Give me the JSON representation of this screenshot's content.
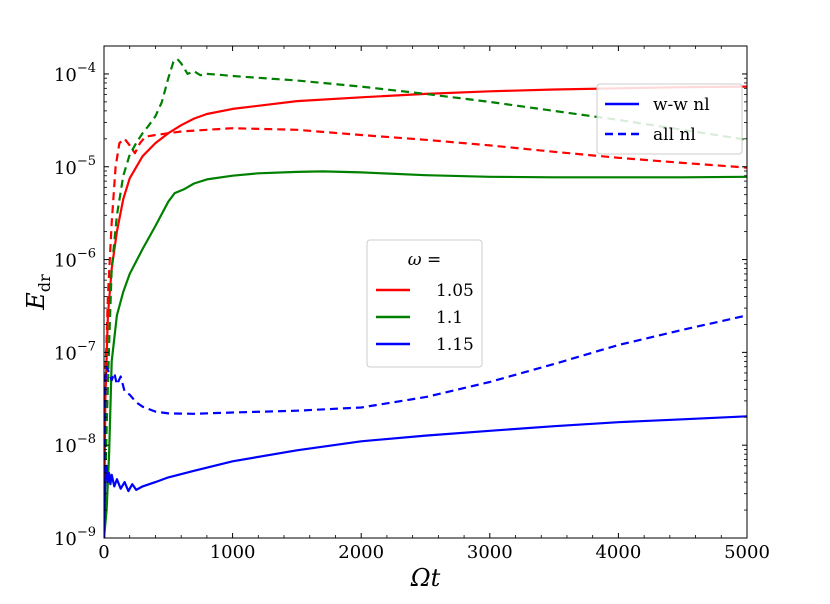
{
  "chart_data": {
    "type": "line",
    "title": "",
    "xlabel": "Ωt",
    "ylabel": "E_dr",
    "ylabel_main": "E",
    "ylabel_sub": "dr",
    "xlim": [
      0,
      5000
    ],
    "ylim": [
      1e-09,
      0.0002
    ],
    "yscale": "log",
    "grid": false,
    "x_ticks": [
      0,
      1000,
      2000,
      3000,
      4000,
      5000
    ],
    "x_tick_labels": [
      "0",
      "1000",
      "2000",
      "3000",
      "4000",
      "5000"
    ],
    "y_ticks": [
      1e-09,
      1e-08,
      1e-07,
      1e-06,
      1e-05,
      0.0001
    ],
    "y_tick_labels": [
      {
        "base": "10",
        "exp": "−9"
      },
      {
        "base": "10",
        "exp": "−8"
      },
      {
        "base": "10",
        "exp": "−7"
      },
      {
        "base": "10",
        "exp": "−6"
      },
      {
        "base": "10",
        "exp": "−5"
      },
      {
        "base": "10",
        "exp": "−4"
      }
    ],
    "legend_omega": {
      "placement": "center",
      "title": "ω =",
      "entries": [
        {
          "label": "1.05",
          "color": "#ff0000"
        },
        {
          "label": "1.1",
          "color": "#008000"
        },
        {
          "label": "1.15",
          "color": "#0000ff"
        }
      ]
    },
    "legend_style": {
      "placement": "top-right",
      "entries": [
        {
          "label": "w-w nl",
          "style": "solid",
          "color": "#0000ff"
        },
        {
          "label": "all nl",
          "style": "dashed",
          "color": "#0000ff"
        }
      ]
    },
    "series": [
      {
        "omega": "1.05",
        "style": "solid",
        "color": "#ff0000",
        "points": [
          [
            0,
            1e-09
          ],
          [
            10,
            3e-08
          ],
          [
            30,
            2.5e-07
          ],
          [
            60,
            8e-07
          ],
          [
            100,
            2e-06
          ],
          [
            150,
            4.5e-06
          ],
          [
            200,
            7.5e-06
          ],
          [
            300,
            1.3e-05
          ],
          [
            400,
            1.8e-05
          ],
          [
            500,
            2.3e-05
          ],
          [
            600,
            2.8e-05
          ],
          [
            700,
            3.3e-05
          ],
          [
            800,
            3.7e-05
          ],
          [
            1000,
            4.2e-05
          ],
          [
            1500,
            5.1e-05
          ],
          [
            2000,
            5.6e-05
          ],
          [
            2500,
            6.1e-05
          ],
          [
            3000,
            6.5e-05
          ],
          [
            3500,
            6.8e-05
          ],
          [
            4000,
            7e-05
          ],
          [
            4500,
            7.2e-05
          ],
          [
            5000,
            7.3e-05
          ]
        ]
      },
      {
        "omega": "1.05",
        "style": "dashed",
        "color": "#ff0000",
        "points": [
          [
            0,
            1e-09
          ],
          [
            10,
            5e-08
          ],
          [
            30,
            4e-07
          ],
          [
            60,
            2.5e-06
          ],
          [
            90,
            1e-05
          ],
          [
            120,
            1.8e-05
          ],
          [
            160,
            2e-05
          ],
          [
            200,
            1.7e-05
          ],
          [
            240,
            1.4e-05
          ],
          [
            280,
            1.8e-05
          ],
          [
            320,
            2.1e-05
          ],
          [
            400,
            2.2e-05
          ],
          [
            600,
            2.4e-05
          ],
          [
            800,
            2.5e-05
          ],
          [
            1000,
            2.6e-05
          ],
          [
            1500,
            2.5e-05
          ],
          [
            2000,
            2.2e-05
          ],
          [
            2500,
            1.95e-05
          ],
          [
            3000,
            1.7e-05
          ],
          [
            3500,
            1.45e-05
          ],
          [
            4000,
            1.25e-05
          ],
          [
            4500,
            1.1e-05
          ],
          [
            5000,
            9.8e-06
          ]
        ]
      },
      {
        "omega": "1.1",
        "style": "solid",
        "color": "#008000",
        "points": [
          [
            0,
            1e-09
          ],
          [
            20,
            2e-09
          ],
          [
            40,
            8e-09
          ],
          [
            60,
            8e-08
          ],
          [
            100,
            2.5e-07
          ],
          [
            150,
            4.5e-07
          ],
          [
            200,
            7e-07
          ],
          [
            300,
            1.3e-06
          ],
          [
            400,
            2.3e-06
          ],
          [
            500,
            4.2e-06
          ],
          [
            550,
            5.2e-06
          ],
          [
            620,
            5.7e-06
          ],
          [
            700,
            6.6e-06
          ],
          [
            800,
            7.3e-06
          ],
          [
            1000,
            8e-06
          ],
          [
            1200,
            8.5e-06
          ],
          [
            1500,
            8.8e-06
          ],
          [
            1700,
            8.9e-06
          ],
          [
            2000,
            8.7e-06
          ],
          [
            2500,
            8.1e-06
          ],
          [
            3000,
            7.8e-06
          ],
          [
            3500,
            7.7e-06
          ],
          [
            4000,
            7.7e-06
          ],
          [
            4500,
            7.7e-06
          ],
          [
            5000,
            7.8e-06
          ]
        ]
      },
      {
        "omega": "1.1",
        "style": "dashed",
        "color": "#008000",
        "points": [
          [
            0,
            1e-09
          ],
          [
            20,
            1.5e-08
          ],
          [
            40,
            1.2e-07
          ],
          [
            60,
            8e-07
          ],
          [
            100,
            3e-06
          ],
          [
            150,
            8e-06
          ],
          [
            200,
            1.35e-05
          ],
          [
            250,
            1.8e-05
          ],
          [
            300,
            2.3e-05
          ],
          [
            350,
            2.8e-05
          ],
          [
            400,
            3.5e-05
          ],
          [
            450,
            5e-05
          ],
          [
            500,
            9e-05
          ],
          [
            540,
            0.000135
          ],
          [
            570,
            0.000145
          ],
          [
            600,
            0.00013
          ],
          [
            650,
            0.0001
          ],
          [
            700,
            0.000107
          ],
          [
            750,
            9.7e-05
          ],
          [
            800,
            0.0001
          ],
          [
            900,
            9.8e-05
          ],
          [
            1000,
            9.5e-05
          ],
          [
            1500,
            8.5e-05
          ],
          [
            2000,
            7.3e-05
          ],
          [
            2500,
            6.1e-05
          ],
          [
            3000,
            5e-05
          ],
          [
            3500,
            4e-05
          ],
          [
            4000,
            3.2e-05
          ],
          [
            4500,
            2.5e-05
          ],
          [
            5000,
            1.95e-05
          ]
        ]
      },
      {
        "omega": "1.15",
        "style": "solid",
        "color": "#0000ff",
        "points": [
          [
            0,
            1e-09
          ],
          [
            10,
            4e-09
          ],
          [
            20,
            6e-09
          ],
          [
            30,
            4e-09
          ],
          [
            40,
            5e-09
          ],
          [
            50,
            3.8e-09
          ],
          [
            60,
            4.8e-09
          ],
          [
            80,
            3.6e-09
          ],
          [
            100,
            4.3e-09
          ],
          [
            130,
            3.4e-09
          ],
          [
            160,
            4e-09
          ],
          [
            190,
            3.2e-09
          ],
          [
            220,
            3.8e-09
          ],
          [
            250,
            3.3e-09
          ],
          [
            300,
            3.6e-09
          ],
          [
            400,
            4e-09
          ],
          [
            500,
            4.5e-09
          ],
          [
            700,
            5.3e-09
          ],
          [
            1000,
            6.7e-09
          ],
          [
            1500,
            8.8e-09
          ],
          [
            2000,
            1.1e-08
          ],
          [
            2500,
            1.27e-08
          ],
          [
            3000,
            1.43e-08
          ],
          [
            3500,
            1.6e-08
          ],
          [
            4000,
            1.77e-08
          ],
          [
            4500,
            1.9e-08
          ],
          [
            5000,
            2.05e-08
          ]
        ]
      },
      {
        "omega": "1.15",
        "style": "dashed",
        "color": "#0000ff",
        "points": [
          [
            0,
            1e-09
          ],
          [
            10,
            5e-08
          ],
          [
            20,
            7e-08
          ],
          [
            40,
            6e-08
          ],
          [
            60,
            5e-08
          ],
          [
            80,
            6e-08
          ],
          [
            100,
            4.5e-08
          ],
          [
            130,
            5.5e-08
          ],
          [
            160,
            3.8e-08
          ],
          [
            200,
            3.5e-08
          ],
          [
            250,
            2.9e-08
          ],
          [
            300,
            2.6e-08
          ],
          [
            400,
            2.3e-08
          ],
          [
            500,
            2.2e-08
          ],
          [
            700,
            2.18e-08
          ],
          [
            1000,
            2.25e-08
          ],
          [
            1500,
            2.35e-08
          ],
          [
            2000,
            2.55e-08
          ],
          [
            2500,
            3.3e-08
          ],
          [
            3000,
            4.8e-08
          ],
          [
            3500,
            7.5e-08
          ],
          [
            4000,
            1.2e-07
          ],
          [
            4500,
            1.75e-07
          ],
          [
            5000,
            2.5e-07
          ]
        ]
      }
    ]
  }
}
